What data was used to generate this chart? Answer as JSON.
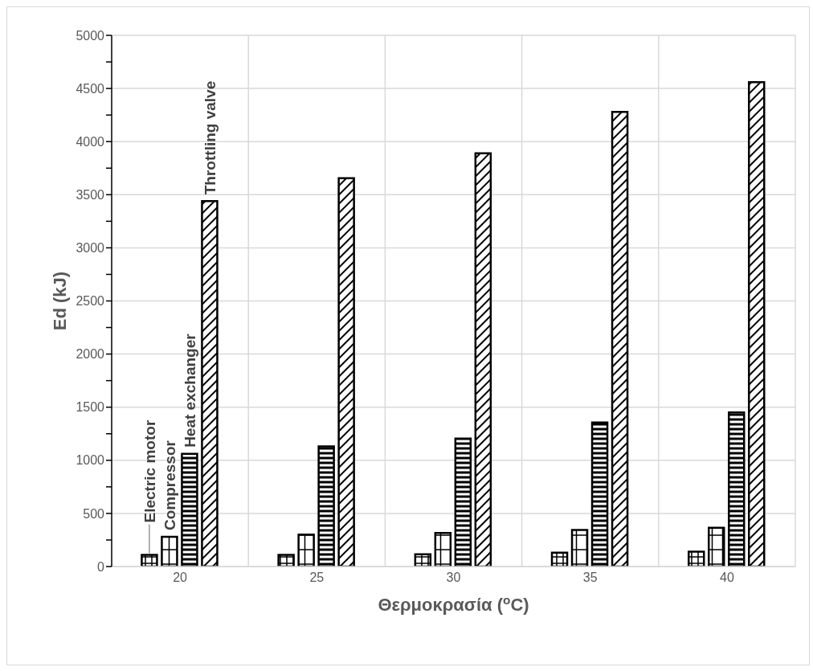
{
  "chart_data": {
    "type": "bar",
    "xlabel": "Θερμοκρασία ($^{o}$C)",
    "ylabel": "Ed (kJ)",
    "categories": [
      "20",
      "25",
      "30",
      "35",
      "40"
    ],
    "series": [
      {
        "name": "Electric motor",
        "color": "#000000",
        "values": [
          110,
          110,
          115,
          130,
          140
        ]
      },
      {
        "name": "Compressor",
        "color": "#000000",
        "values": [
          280,
          300,
          315,
          345,
          365
        ]
      },
      {
        "name": "Heat exchanger",
        "color": "#000000",
        "values": [
          1060,
          1130,
          1205,
          1355,
          1450
        ]
      },
      {
        "name": "Throttling valve",
        "color": "#000000",
        "values": [
          3440,
          3655,
          3890,
          4280,
          4560
        ]
      }
    ],
    "ylim": [
      0,
      5000
    ],
    "yticks": [
      0,
      {
        "value": 250,
        "label": null
      },
      500,
      {
        "value": 750,
        "label": null
      },
      1000,
      {
        "value": 1250,
        "label": null
      },
      1500,
      {
        "value": 1750,
        "label": null
      },
      2000,
      {
        "value": 2250,
        "label": null
      },
      2500,
      {
        "value": 2750,
        "label": null
      },
      3000,
      {
        "value": 3250,
        "label": null
      },
      3500,
      {
        "value": 3750,
        "label": null
      },
      4000,
      {
        "value": 4250,
        "label": null
      },
      4500,
      {
        "value": 4750,
        "label": null
      },
      5000
    ],
    "grid": true,
    "legend": false
  }
}
